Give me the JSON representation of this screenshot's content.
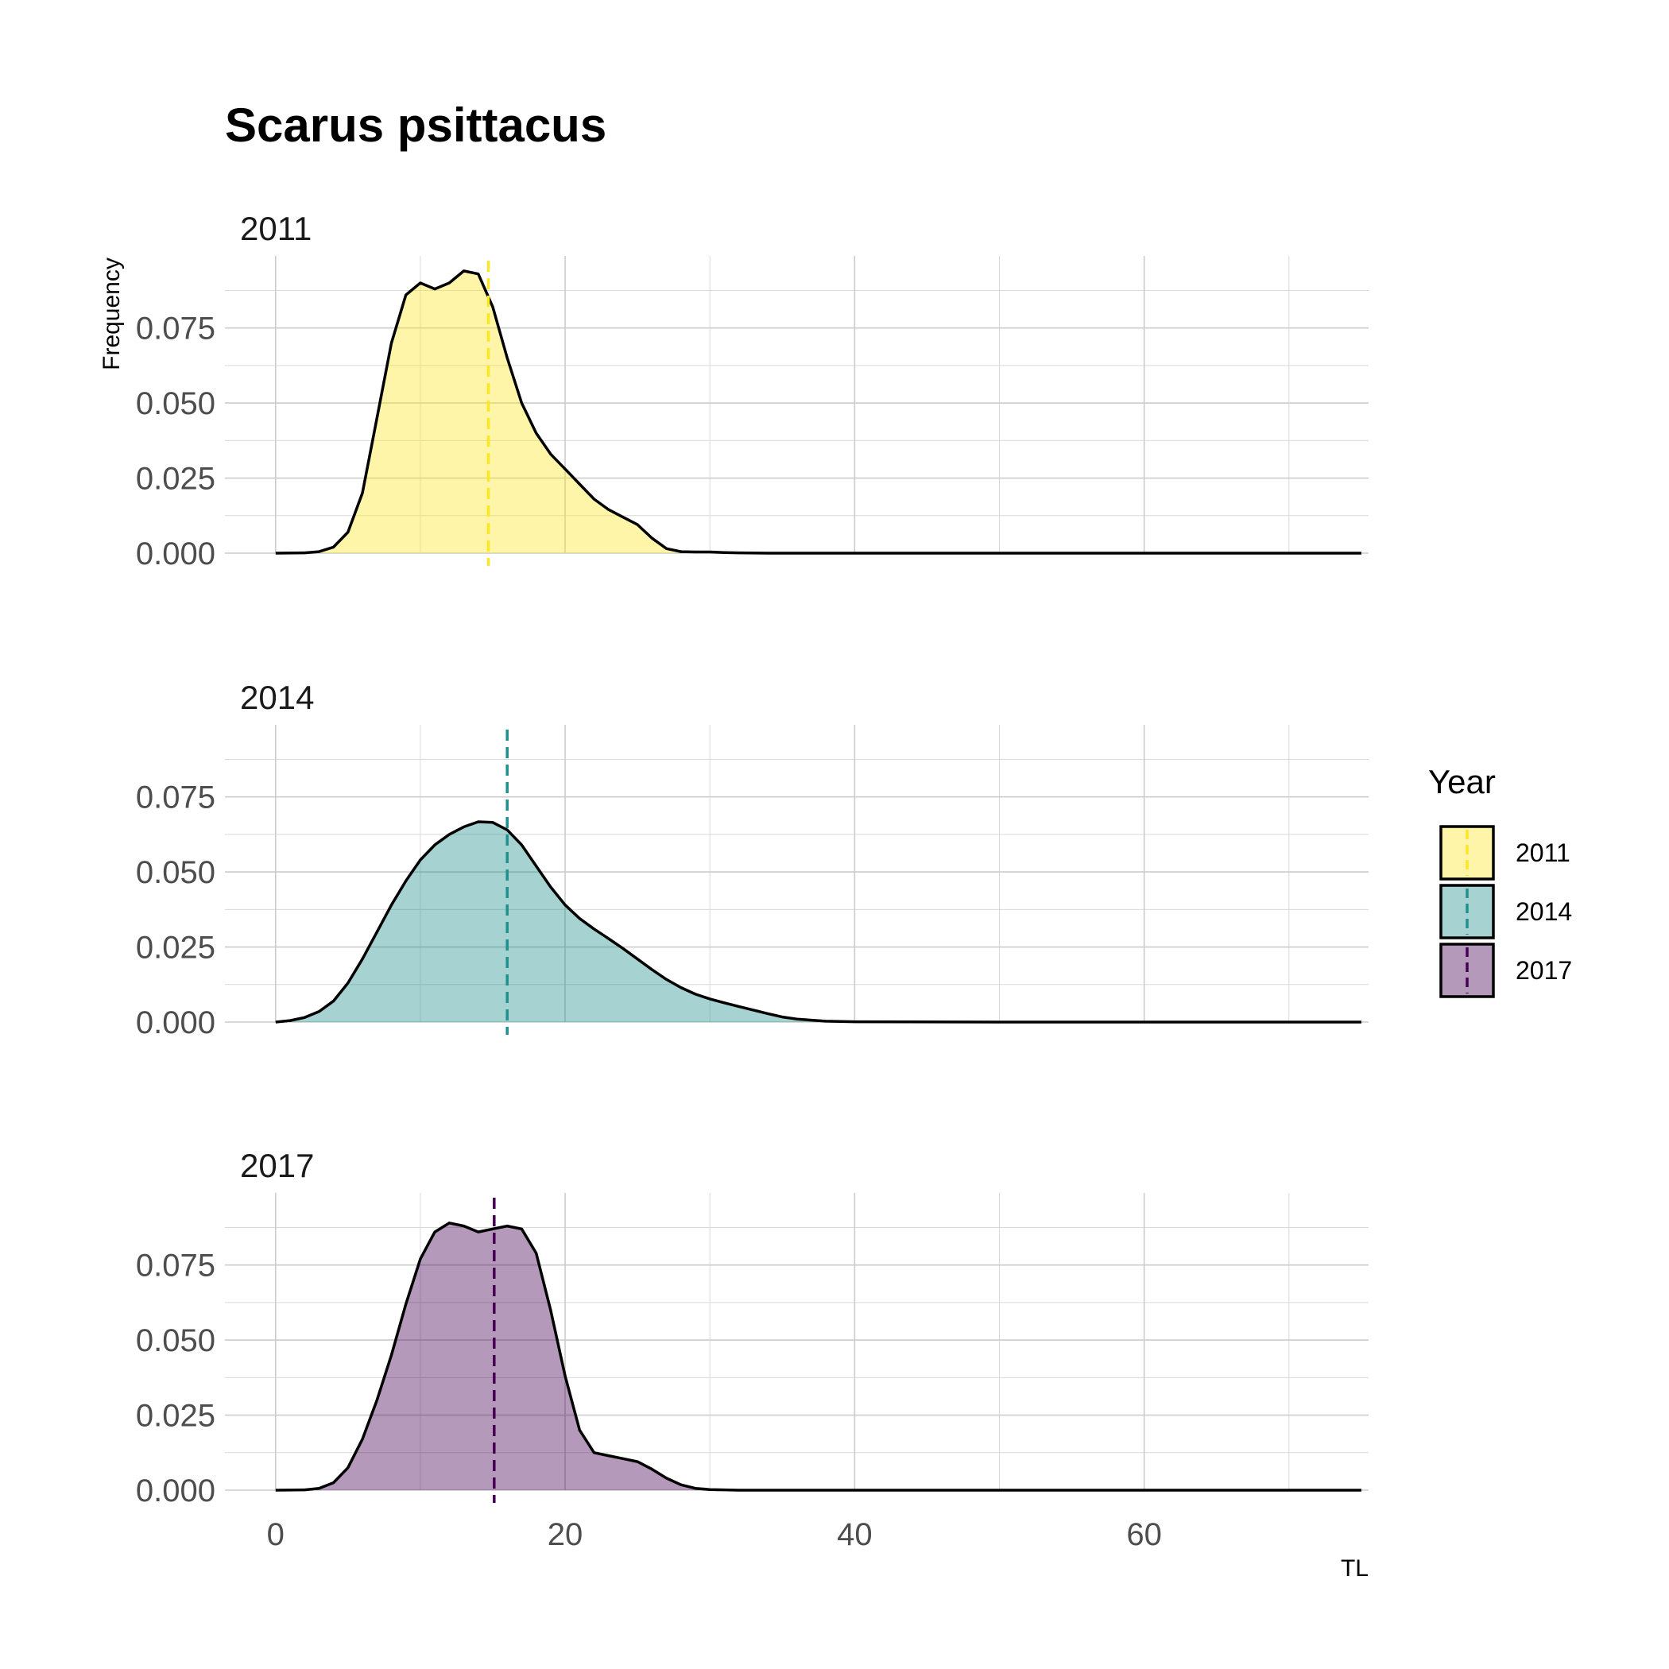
{
  "chart_data": {
    "type": "area",
    "title": "Scarus psittacus",
    "xlabel": "TL",
    "ylabel": "Frequency",
    "xlim": [
      -3.5,
      75.5
    ],
    "ylim": [
      0,
      0.099
    ],
    "x_ticks": [
      0,
      20,
      40,
      60
    ],
    "x_tick_labels": [
      "0",
      "20",
      "40",
      "60"
    ],
    "y_ticks": [
      0,
      0.025,
      0.05,
      0.075
    ],
    "y_tick_labels": [
      "0.000",
      "0.025",
      "0.050",
      "0.075"
    ],
    "grid": true,
    "legend": {
      "title": "Year",
      "position": "right",
      "entries": [
        "2011",
        "2014",
        "2017"
      ]
    },
    "panels": [
      {
        "label": "2011",
        "fill": "#FDE725",
        "line": "#FDE725",
        "mean_tl": 14.7,
        "x": [
          0,
          2,
          3,
          4,
          5,
          6,
          7,
          8,
          9,
          10,
          11,
          12,
          13,
          14,
          15,
          16,
          17,
          18,
          19,
          20,
          21,
          22,
          23,
          24,
          25,
          26,
          27,
          28,
          29,
          30,
          31,
          32,
          34,
          40,
          50,
          60,
          70,
          75
        ],
        "y": [
          0,
          0.0001,
          0.0005,
          0.002,
          0.007,
          0.02,
          0.045,
          0.07,
          0.086,
          0.09,
          0.088,
          0.09,
          0.094,
          0.093,
          0.082,
          0.065,
          0.05,
          0.04,
          0.033,
          0.028,
          0.023,
          0.018,
          0.0145,
          0.012,
          0.0095,
          0.005,
          0.0015,
          0.0005,
          0.0004,
          0.0004,
          0.0002,
          0.0001,
          0,
          0,
          0,
          0,
          0,
          0
        ]
      },
      {
        "label": "2014",
        "fill": "#21908C",
        "line": "#21908C",
        "mean_tl": 16.0,
        "x": [
          0,
          1,
          2,
          3,
          4,
          5,
          6,
          7,
          8,
          9,
          10,
          11,
          12,
          13,
          14,
          15,
          16,
          17,
          18,
          19,
          20,
          21,
          22,
          23,
          24,
          25,
          26,
          27,
          28,
          29,
          30,
          31,
          32,
          33,
          34,
          35,
          36,
          38,
          40,
          50,
          60,
          70,
          75
        ],
        "y": [
          0,
          0.0005,
          0.0015,
          0.0035,
          0.007,
          0.013,
          0.021,
          0.03,
          0.039,
          0.047,
          0.054,
          0.059,
          0.0625,
          0.065,
          0.0667,
          0.0665,
          0.064,
          0.059,
          0.052,
          0.045,
          0.039,
          0.0345,
          0.031,
          0.0278,
          0.0245,
          0.021,
          0.0175,
          0.0142,
          0.0115,
          0.0093,
          0.0077,
          0.0064,
          0.0052,
          0.004,
          0.0028,
          0.0017,
          0.001,
          0.0003,
          0.0001,
          0,
          0,
          0,
          0
        ]
      },
      {
        "label": "2017",
        "fill": "#440154",
        "line": "#440154",
        "mean_tl": 15.1,
        "x": [
          0,
          2,
          3,
          4,
          5,
          6,
          7,
          8,
          9,
          10,
          11,
          12,
          13,
          14,
          15,
          16,
          17,
          18,
          19,
          20,
          21,
          22,
          23,
          24,
          25,
          26,
          27,
          28,
          29,
          30,
          32,
          40,
          50,
          60,
          70,
          75
        ],
        "y": [
          0,
          0.0001,
          0.0006,
          0.0025,
          0.0075,
          0.017,
          0.03,
          0.045,
          0.062,
          0.077,
          0.086,
          0.089,
          0.088,
          0.086,
          0.087,
          0.088,
          0.087,
          0.079,
          0.06,
          0.038,
          0.02,
          0.0125,
          0.0115,
          0.0105,
          0.0095,
          0.007,
          0.004,
          0.0018,
          0.0006,
          0.0002,
          0,
          0,
          0,
          0,
          0,
          0
        ]
      }
    ]
  }
}
